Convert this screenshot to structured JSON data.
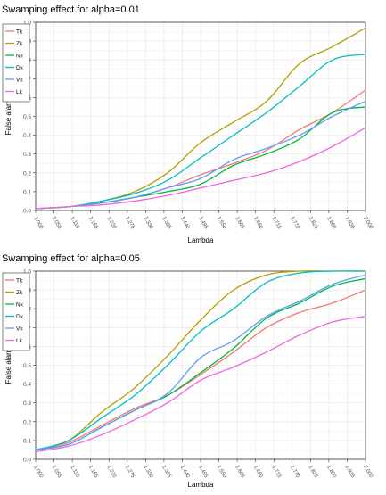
{
  "chart_data": [
    {
      "type": "line",
      "title": "Swamping effect for alpha=0.01",
      "xlabel": "Lambda",
      "ylabel": "False alarm",
      "ylim": [
        0,
        1.0
      ],
      "xlim": [
        1.0,
        2.0
      ],
      "grid": true,
      "legend_position": "top-left",
      "x_tick_labels": [
        "1.000",
        "1.055",
        "1.110",
        "1.165",
        "1.220",
        "1.275",
        "1.330",
        "1.385",
        "1.440",
        "1.495",
        "1.550",
        "1.605",
        "1.660",
        "1.715",
        "1.770",
        "1.825",
        "1.880",
        "1.935",
        "2.000"
      ],
      "y_tick_labels": [
        "0.0",
        "0.1",
        "0.2",
        "0.3",
        "0.4",
        "0.5",
        "0.6",
        "0.7",
        "0.8",
        "0.9",
        "1.0"
      ],
      "x": [
        1.0,
        1.1,
        1.2,
        1.3,
        1.4,
        1.5,
        1.6,
        1.7,
        1.8,
        1.9,
        2.0
      ],
      "series": [
        {
          "name": "Tk",
          "color": "#F8766D",
          "values": [
            0.01,
            0.02,
            0.04,
            0.07,
            0.12,
            0.19,
            0.25,
            0.32,
            0.43,
            0.52,
            0.64
          ]
        },
        {
          "name": "Zk",
          "color": "#B79F00",
          "values": [
            0.01,
            0.02,
            0.05,
            0.1,
            0.2,
            0.36,
            0.47,
            0.58,
            0.78,
            0.87,
            0.97
          ]
        },
        {
          "name": "Nk",
          "color": "#00BA38",
          "values": [
            0.01,
            0.02,
            0.04,
            0.07,
            0.1,
            0.14,
            0.24,
            0.3,
            0.38,
            0.52,
            0.55
          ]
        },
        {
          "name": "Dk",
          "color": "#00BFC4",
          "values": [
            0.01,
            0.02,
            0.05,
            0.09,
            0.16,
            0.28,
            0.4,
            0.52,
            0.66,
            0.8,
            0.83
          ]
        },
        {
          "name": "Vk",
          "color": "#619CFF",
          "values": [
            0.01,
            0.02,
            0.04,
            0.07,
            0.12,
            0.17,
            0.27,
            0.33,
            0.4,
            0.5,
            0.58
          ]
        },
        {
          "name": "Lk",
          "color": "#F564E3",
          "values": [
            0.01,
            0.02,
            0.03,
            0.05,
            0.08,
            0.12,
            0.16,
            0.2,
            0.26,
            0.34,
            0.44
          ]
        }
      ]
    },
    {
      "type": "line",
      "title": "Swamping effect for alpha=0.05",
      "xlabel": "Lambda",
      "ylabel": "False alarm",
      "ylim": [
        0,
        1.0
      ],
      "xlim": [
        1.0,
        2.0
      ],
      "grid": true,
      "legend_position": "top-left",
      "x_tick_labels": [
        "1.000",
        "1.055",
        "1.110",
        "1.165",
        "1.220",
        "1.275",
        "1.330",
        "1.385",
        "1.440",
        "1.495",
        "1.550",
        "1.605",
        "1.660",
        "1.715",
        "1.770",
        "1.825",
        "1.880",
        "1.935",
        "2.000"
      ],
      "y_tick_labels": [
        "0.0",
        "0.1",
        "0.2",
        "0.3",
        "0.4",
        "0.5",
        "0.6",
        "0.7",
        "0.8",
        "0.9",
        "1.0"
      ],
      "x": [
        1.0,
        1.1,
        1.2,
        1.3,
        1.4,
        1.5,
        1.6,
        1.7,
        1.8,
        1.9,
        2.0
      ],
      "series": [
        {
          "name": "Tk",
          "color": "#F8766D",
          "values": [
            0.05,
            0.09,
            0.18,
            0.27,
            0.34,
            0.45,
            0.57,
            0.7,
            0.78,
            0.83,
            0.9
          ]
        },
        {
          "name": "Zk",
          "color": "#B79F00",
          "values": [
            0.05,
            0.1,
            0.25,
            0.38,
            0.55,
            0.74,
            0.9,
            0.98,
            1.0,
            1.0,
            1.0
          ]
        },
        {
          "name": "Nk",
          "color": "#00BA38",
          "values": [
            0.05,
            0.08,
            0.17,
            0.26,
            0.34,
            0.46,
            0.59,
            0.75,
            0.83,
            0.92,
            0.96
          ]
        },
        {
          "name": "Dk",
          "color": "#00BFC4",
          "values": [
            0.05,
            0.1,
            0.22,
            0.34,
            0.5,
            0.68,
            0.8,
            0.94,
            0.99,
            1.0,
            1.0
          ]
        },
        {
          "name": "Vk",
          "color": "#619CFF",
          "values": [
            0.05,
            0.08,
            0.17,
            0.26,
            0.35,
            0.54,
            0.63,
            0.76,
            0.84,
            0.93,
            0.98
          ]
        },
        {
          "name": "Lk",
          "color": "#F564E3",
          "values": [
            0.04,
            0.07,
            0.13,
            0.21,
            0.3,
            0.42,
            0.49,
            0.57,
            0.66,
            0.73,
            0.76
          ]
        }
      ]
    }
  ]
}
